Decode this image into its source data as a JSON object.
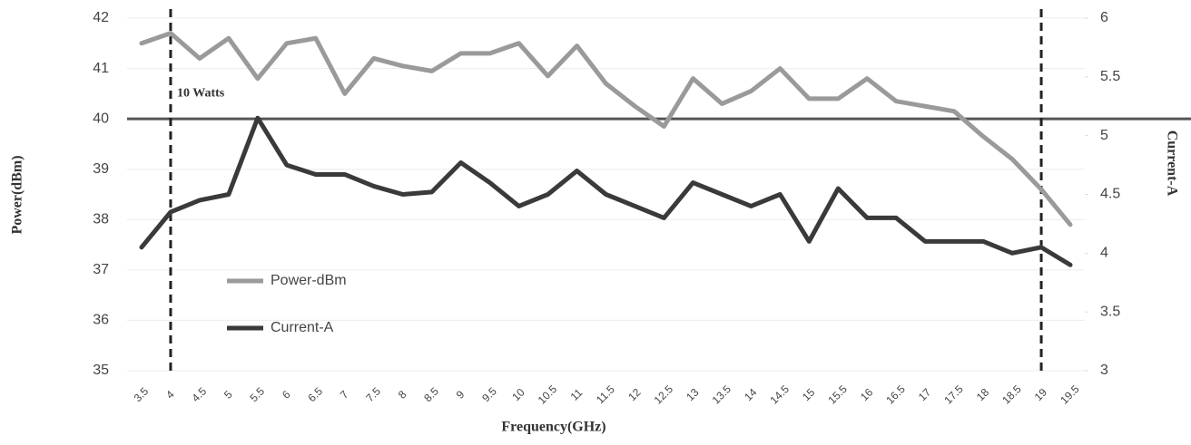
{
  "chart_data": {
    "type": "line",
    "x_label": "Frequency(GHz)",
    "y_label": "Power(dBm)",
    "y2_label": "Current-A",
    "categories": [
      "3.5",
      "4",
      "4.5",
      "5",
      "5.5",
      "6",
      "6.5",
      "7",
      "7.5",
      "8",
      "8.5",
      "9",
      "9.5",
      "10",
      "10.5",
      "11",
      "11.5",
      "12",
      "12.5",
      "13",
      "13.5",
      "14",
      "14.5",
      "15",
      "15.5",
      "16",
      "16.5",
      "17",
      "17.5",
      "18",
      "18.5",
      "19",
      "19.5"
    ],
    "series": [
      {
        "name": "Power-dBm",
        "color": "#9a9a9a",
        "values": [
          41.5,
          41.7,
          41.2,
          41.6,
          40.8,
          41.5,
          41.6,
          40.5,
          41.2,
          41.05,
          40.95,
          41.3,
          41.3,
          41.5,
          40.85,
          41.45,
          40.7,
          40.25,
          39.85,
          40.8,
          40.3,
          40.55,
          41.0,
          40.4,
          40.4,
          40.8,
          40.35,
          40.25,
          40.15,
          39.65,
          39.2,
          38.6,
          37.9
        ]
      },
      {
        "name": "Current-A",
        "color": "#3a3a3a",
        "axis": "y2",
        "values": [
          4.05,
          4.35,
          4.45,
          4.5,
          5.15,
          4.75,
          4.67,
          4.67,
          4.57,
          4.5,
          4.52,
          4.77,
          4.6,
          4.4,
          4.5,
          4.7,
          4.5,
          4.4,
          4.3,
          4.6,
          4.5,
          4.4,
          4.5,
          4.1,
          4.55,
          4.3,
          4.3,
          4.1,
          4.1,
          4.1,
          4.0,
          4.05,
          3.9
        ]
      }
    ],
    "ylim": [
      35,
      42
    ],
    "yticks": [
      35,
      36,
      37,
      38,
      39,
      40,
      41,
      42
    ],
    "y2lim": [
      3,
      6
    ],
    "y2ticks": [
      3,
      3.5,
      4,
      4.5,
      5,
      5.5,
      6
    ],
    "grid": true,
    "legend": "left",
    "hline": {
      "value": 40,
      "label": "10 Watts"
    },
    "vlines": [
      "4",
      "19"
    ]
  }
}
